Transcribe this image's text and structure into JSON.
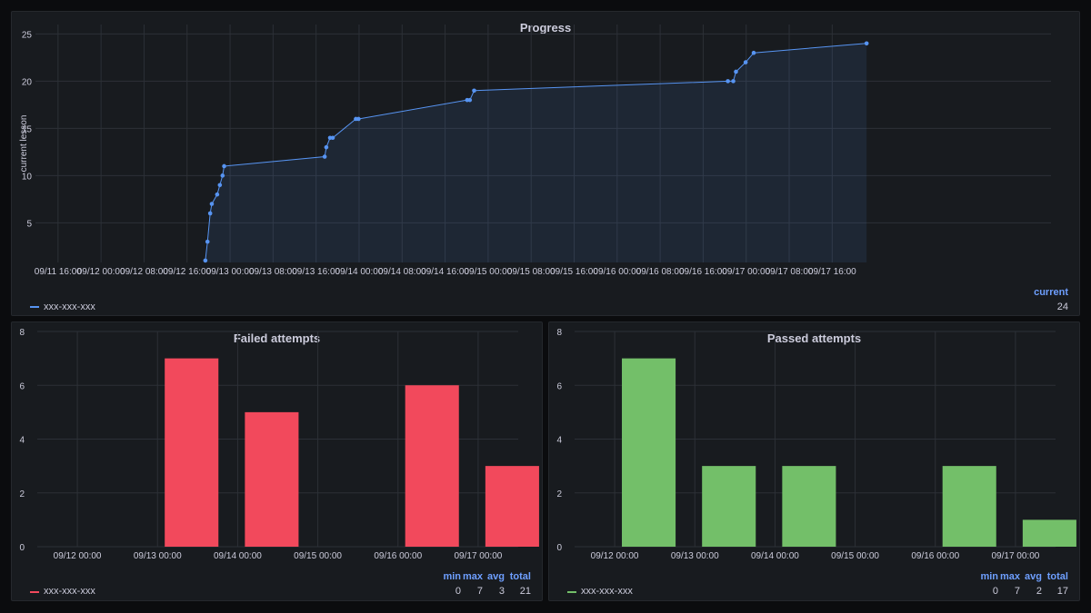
{
  "colors": {
    "blue": "#5794f2",
    "red": "#f2495c",
    "green": "#73bf69",
    "grid": "#2c3037",
    "text": "#ccccdc",
    "legend_head": "#6e9fff"
  },
  "panels": {
    "progress": {
      "title": "Progress",
      "legend": {
        "series_name": "xxx-xxx-xxx",
        "header": "current",
        "value": "24"
      }
    },
    "failed": {
      "title": "Failed attempts",
      "legend": {
        "series_name": "xxx-xxx-xxx",
        "headers": [
          "min",
          "max",
          "avg",
          "total"
        ],
        "values": [
          "0",
          "7",
          "3",
          "21"
        ]
      }
    },
    "passed": {
      "title": "Passed attempts",
      "legend": {
        "series_name": "xxx-xxx-xxx",
        "headers": [
          "min",
          "max",
          "avg",
          "total"
        ],
        "values": [
          "0",
          "7",
          "2",
          "17"
        ]
      }
    }
  },
  "chart_data": [
    {
      "id": "progress",
      "type": "line",
      "title": "Progress",
      "ylabel": "current lesson",
      "xlabel": "",
      "x_unit": "hours since 09/11 16:00",
      "xlim": [
        -4.2,
        184.7
      ],
      "ylim": [
        0.8,
        26.0
      ],
      "y_ticks": [
        5,
        10,
        15,
        20,
        25
      ],
      "x_ticks": [
        {
          "x": 0,
          "label": "09/11 16:00"
        },
        {
          "x": 8,
          "label": "09/12 00:00"
        },
        {
          "x": 16,
          "label": "09/12 08:00"
        },
        {
          "x": 24,
          "label": "09/12 16:00"
        },
        {
          "x": 32,
          "label": "09/13 00:00"
        },
        {
          "x": 40,
          "label": "09/13 08:00"
        },
        {
          "x": 48,
          "label": "09/13 16:00"
        },
        {
          "x": 56,
          "label": "09/14 00:00"
        },
        {
          "x": 64,
          "label": "09/14 08:00"
        },
        {
          "x": 72,
          "label": "09/14 16:00"
        },
        {
          "x": 80,
          "label": "09/15 00:00"
        },
        {
          "x": 88,
          "label": "09/15 08:00"
        },
        {
          "x": 96,
          "label": "09/15 16:00"
        },
        {
          "x": 104,
          "label": "09/16 00:00"
        },
        {
          "x": 112,
          "label": "09/16 08:00"
        },
        {
          "x": 120,
          "label": "09/16 16:00"
        },
        {
          "x": 128,
          "label": "09/17 00:00"
        },
        {
          "x": 136,
          "label": "09/17 08:00"
        },
        {
          "x": 144,
          "label": "09/17 16:00"
        }
      ],
      "grid": true,
      "series": [
        {
          "name": "xxx-xxx-xxx",
          "points": [
            [
              27.4,
              1
            ],
            [
              27.8,
              3
            ],
            [
              28.3,
              6
            ],
            [
              28.6,
              7
            ],
            [
              29.6,
              8
            ],
            [
              30.1,
              9
            ],
            [
              30.6,
              10
            ],
            [
              30.9,
              11
            ],
            [
              49.6,
              12
            ],
            [
              49.9,
              13
            ],
            [
              50.6,
              14
            ],
            [
              51.1,
              14
            ],
            [
              55.4,
              16
            ],
            [
              55.9,
              16
            ],
            [
              76.1,
              18
            ],
            [
              76.6,
              18
            ],
            [
              77.4,
              19
            ],
            [
              124.6,
              20
            ],
            [
              125.6,
              20
            ],
            [
              126.1,
              21
            ],
            [
              127.9,
              22
            ],
            [
              129.4,
              23
            ],
            [
              150.4,
              24
            ]
          ]
        }
      ]
    },
    {
      "id": "failed",
      "type": "bar",
      "title": "Failed attempts",
      "x_unit": "days since 09/12 00:00",
      "xlim": [
        -0.5,
        5.5
      ],
      "ylim": [
        0,
        8
      ],
      "y_ticks": [
        0,
        2,
        4,
        6,
        8
      ],
      "x_ticks": [
        {
          "x": 0,
          "label": "09/12 00:00"
        },
        {
          "x": 1,
          "label": "09/13 00:00"
        },
        {
          "x": 2,
          "label": "09/14 00:00"
        },
        {
          "x": 3,
          "label": "09/15 00:00"
        },
        {
          "x": 4,
          "label": "09/16 00:00"
        },
        {
          "x": 5,
          "label": "09/17 00:00"
        }
      ],
      "bar_width_days": 0.67,
      "series": [
        {
          "name": "xxx-xxx-xxx",
          "x": [
            1,
            2,
            4,
            5
          ],
          "values": [
            7,
            5,
            6,
            3
          ]
        }
      ]
    },
    {
      "id": "passed",
      "type": "bar",
      "title": "Passed attempts",
      "x_unit": "days since 09/12 00:00",
      "xlim": [
        -0.5,
        5.5
      ],
      "ylim": [
        0,
        8
      ],
      "y_ticks": [
        0,
        2,
        4,
        6,
        8
      ],
      "x_ticks": [
        {
          "x": 0,
          "label": "09/12 00:00"
        },
        {
          "x": 1,
          "label": "09/13 00:00"
        },
        {
          "x": 2,
          "label": "09/14 00:00"
        },
        {
          "x": 3,
          "label": "09/15 00:00"
        },
        {
          "x": 4,
          "label": "09/16 00:00"
        },
        {
          "x": 5,
          "label": "09/17 00:00"
        }
      ],
      "bar_width_days": 0.67,
      "series": [
        {
          "name": "xxx-xxx-xxx",
          "x": [
            0,
            1,
            2,
            4,
            5
          ],
          "values": [
            7,
            3,
            3,
            3,
            1
          ]
        }
      ]
    }
  ]
}
